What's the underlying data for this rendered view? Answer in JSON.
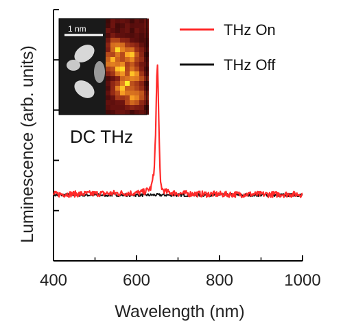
{
  "chart_data": {
    "type": "line",
    "xlabel": "Wavelength (nm)",
    "ylabel": "Luminescence (arb. units)",
    "xlim": [
      400,
      1000
    ],
    "ylim": [
      0,
      1
    ],
    "x_ticks": [
      400,
      600,
      800,
      1000
    ],
    "x_tick_labels": [
      "400",
      "600",
      "800",
      "1000"
    ],
    "y_tick_labels_shown": false,
    "grid": false,
    "legend_position": "top-right",
    "annotation": "DC THz",
    "inset_scale_label": "1 nm",
    "series": [
      {
        "name": "THz On",
        "color": "#ff2a2a",
        "baseline": 0.265,
        "noise_amplitude": 0.012,
        "x": [
          400,
          600,
          620,
          635,
          642,
          646,
          648,
          650,
          652,
          654,
          656,
          658,
          662,
          670,
          700,
          800,
          900,
          1000
        ],
        "y": [
          0.265,
          0.27,
          0.275,
          0.29,
          0.35,
          0.5,
          0.66,
          0.8,
          0.7,
          0.52,
          0.38,
          0.31,
          0.285,
          0.275,
          0.268,
          0.265,
          0.265,
          0.265
        ]
      },
      {
        "name": "THz Off",
        "color": "#111111",
        "baseline": 0.262,
        "noise_amplitude": 0.006,
        "x": [
          400,
          600,
          800,
          1000
        ],
        "y": [
          0.262,
          0.262,
          0.262,
          0.262
        ]
      }
    ]
  }
}
